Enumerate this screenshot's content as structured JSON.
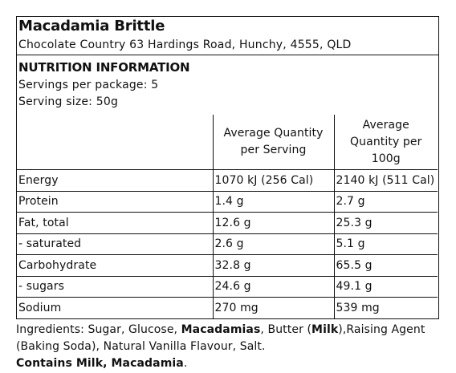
{
  "product": {
    "name": "Macadamia Brittle",
    "address": "Chocolate Country 63 Hardings Road, Hunchy, 4555, QLD"
  },
  "nutrition": {
    "heading": "NUTRITION INFORMATION",
    "servings_per_package": "Servings per package: 5",
    "serving_size": "Serving size: 50g",
    "col_per_serving": "Average Quantity per Serving",
    "col_per_100g": "Average Quantity per 100g",
    "rows": [
      {
        "name": "Energy",
        "per_serving": "1070 kJ (256 Cal)",
        "per_100g": "2140 kJ (511 Cal)"
      },
      {
        "name": "Protein",
        "per_serving": "1.4 g",
        "per_100g": "2.7 g"
      },
      {
        "name": "Fat, total",
        "per_serving": "12.6 g",
        "per_100g": "25.3 g"
      },
      {
        "name": "- saturated",
        "per_serving": "2.6 g",
        "per_100g": "5.1 g"
      },
      {
        "name": "Carbohydrate",
        "per_serving": "32.8 g",
        "per_100g": "65.5 g"
      },
      {
        "name": "- sugars",
        "per_serving": "24.6 g",
        "per_100g": "49.1 g"
      },
      {
        "name": "Sodium",
        "per_serving": "270 mg",
        "per_100g": "539 mg"
      }
    ]
  },
  "ingredients": {
    "prefix": "Ingredients: Sugar, Glucose, ",
    "macadamias": "Macadamias",
    "butter": ", Butter (",
    "milk": "Milk",
    "rest": "),Raising Agent (Baking Soda), Natural Vanilla Flavour, Salt.",
    "allergen": "Contains Milk, Macadamia",
    "allergen_end": "."
  }
}
